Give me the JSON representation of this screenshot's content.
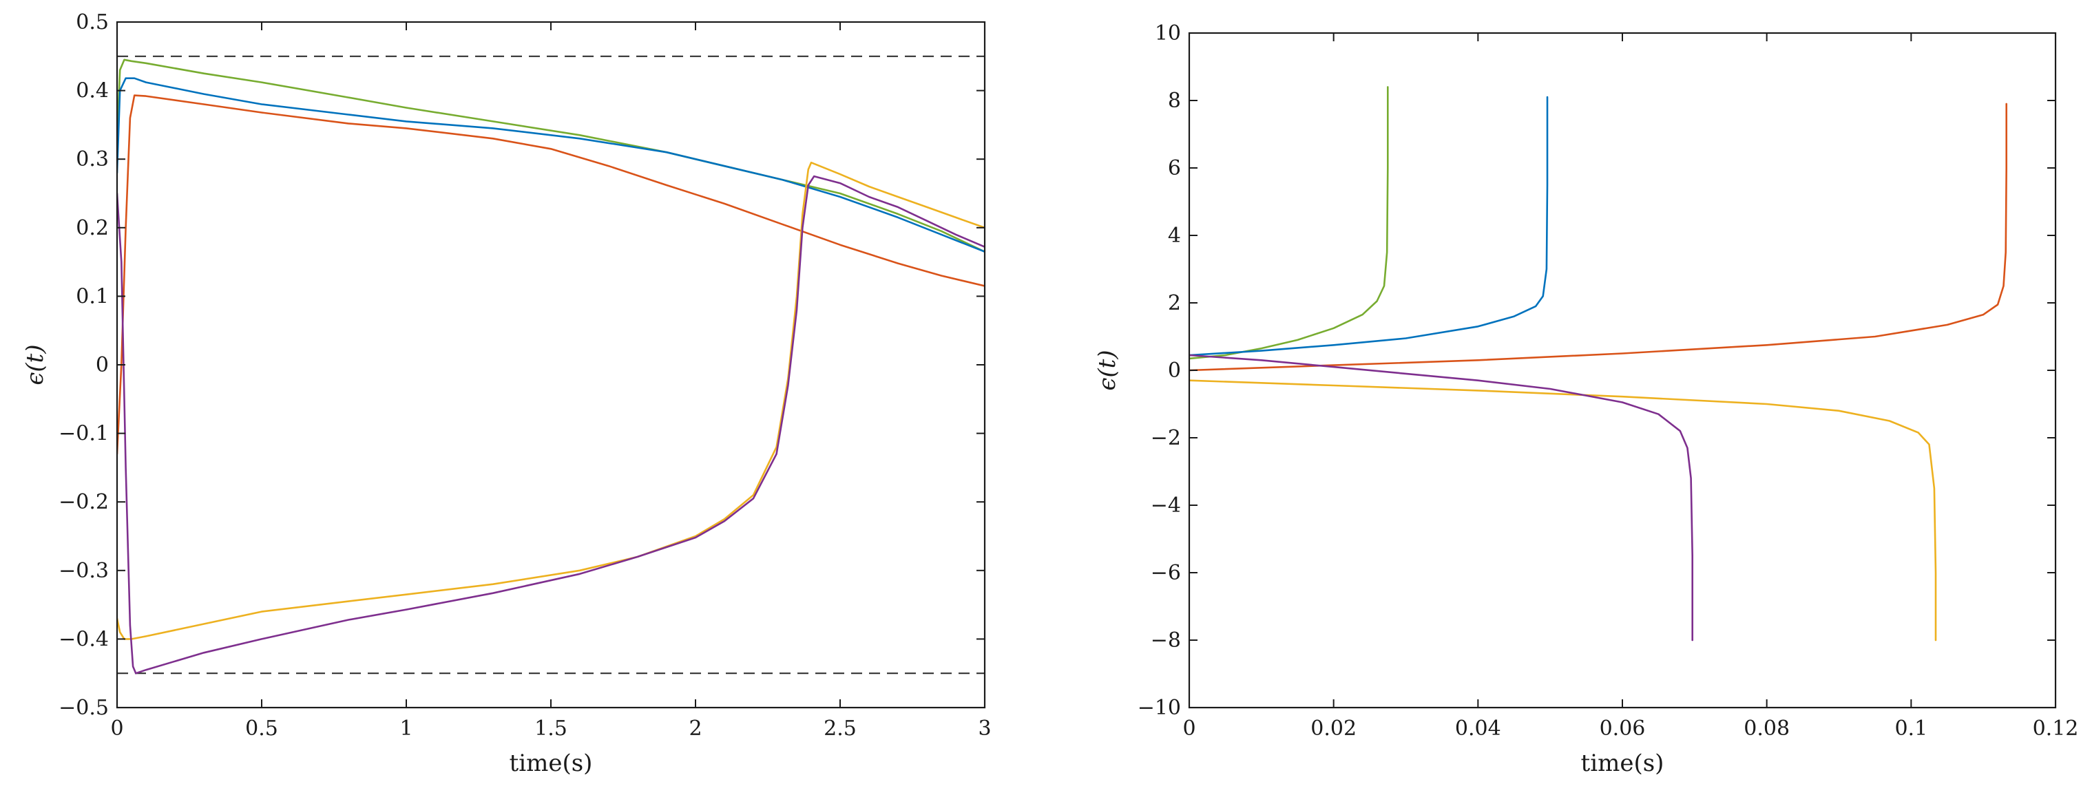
{
  "chart_data": [
    {
      "type": "line",
      "xlabel": "time(s)",
      "ylabel": "ϵ(t)",
      "xlim": [
        0,
        3
      ],
      "ylim": [
        -0.5,
        0.5
      ],
      "xticks": [
        0,
        0.5,
        1,
        1.5,
        2,
        2.5,
        3
      ],
      "xtick_labels": [
        "0",
        "0.5",
        "1",
        "1.5",
        "2",
        "2.5",
        "3"
      ],
      "yticks": [
        -0.5,
        -0.4,
        -0.3,
        -0.2,
        -0.1,
        0,
        0.1,
        0.2,
        0.3,
        0.4,
        0.5
      ],
      "ytick_labels": [
        "−0.5",
        "−0.4",
        "−0.3",
        "−0.2",
        "−0.1",
        "0",
        "0.1",
        "0.2",
        "0.3",
        "0.4",
        "0.5"
      ],
      "grid": false,
      "reference_lines": [
        {
          "y": 0.45,
          "style": "dashed",
          "color": "#333333"
        },
        {
          "y": -0.45,
          "style": "dashed",
          "color": "#333333"
        }
      ],
      "series": [
        {
          "color": "#77AC30",
          "x": [
            0,
            0.01,
            0.025,
            0.05,
            0.1,
            0.3,
            0.5,
            0.8,
            1.0,
            1.3,
            1.6,
            1.9,
            2.1,
            2.3,
            2.5,
            2.7,
            2.85,
            3.0
          ],
          "y": [
            0.33,
            0.43,
            0.445,
            0.443,
            0.44,
            0.425,
            0.412,
            0.39,
            0.375,
            0.355,
            0.335,
            0.31,
            0.29,
            0.27,
            0.25,
            0.22,
            0.195,
            0.165
          ]
        },
        {
          "color": "#0072BD",
          "x": [
            0,
            0.01,
            0.03,
            0.06,
            0.1,
            0.3,
            0.5,
            0.8,
            1.0,
            1.3,
            1.6,
            1.9,
            2.1,
            2.3,
            2.5,
            2.7,
            2.85,
            3.0
          ],
          "y": [
            0.28,
            0.4,
            0.418,
            0.418,
            0.412,
            0.395,
            0.38,
            0.365,
            0.355,
            0.345,
            0.33,
            0.31,
            0.29,
            0.27,
            0.245,
            0.215,
            0.19,
            0.165
          ]
        },
        {
          "color": "#D95319",
          "x": [
            0,
            0.015,
            0.03,
            0.045,
            0.06,
            0.1,
            0.3,
            0.5,
            0.8,
            1.0,
            1.3,
            1.5,
            1.7,
            1.9,
            2.1,
            2.3,
            2.5,
            2.7,
            2.85,
            3.0
          ],
          "y": [
            -0.13,
            0.0,
            0.2,
            0.36,
            0.393,
            0.392,
            0.38,
            0.368,
            0.352,
            0.345,
            0.33,
            0.315,
            0.29,
            0.262,
            0.235,
            0.205,
            0.175,
            0.148,
            0.13,
            0.115
          ]
        },
        {
          "color": "#EDB120",
          "x": [
            0,
            0.01,
            0.025,
            0.05,
            0.1,
            0.3,
            0.5,
            0.8,
            1.0,
            1.3,
            1.6,
            1.8,
            2.0,
            2.1,
            2.2,
            2.28,
            2.32,
            2.35,
            2.37,
            2.39,
            2.4,
            2.5,
            2.6,
            2.7,
            2.8,
            2.9,
            3.0
          ],
          "y": [
            -0.37,
            -0.39,
            -0.4,
            -0.4,
            -0.396,
            -0.378,
            -0.36,
            -0.345,
            -0.335,
            -0.32,
            -0.3,
            -0.28,
            -0.25,
            -0.225,
            -0.19,
            -0.12,
            -0.02,
            0.1,
            0.22,
            0.285,
            0.295,
            0.278,
            0.26,
            0.245,
            0.23,
            0.215,
            0.2
          ]
        },
        {
          "color": "#7E2F8E",
          "x": [
            0,
            0.015,
            0.03,
            0.045,
            0.055,
            0.065,
            0.1,
            0.3,
            0.5,
            0.8,
            1.0,
            1.3,
            1.6,
            1.8,
            2.0,
            2.1,
            2.2,
            2.28,
            2.32,
            2.35,
            2.37,
            2.39,
            2.41,
            2.5,
            2.6,
            2.7,
            2.8,
            2.9,
            3.0
          ],
          "y": [
            0.25,
            0.15,
            -0.15,
            -0.38,
            -0.44,
            -0.45,
            -0.445,
            -0.42,
            -0.4,
            -0.372,
            -0.357,
            -0.333,
            -0.305,
            -0.28,
            -0.252,
            -0.228,
            -0.195,
            -0.13,
            -0.03,
            0.08,
            0.2,
            0.262,
            0.275,
            0.265,
            0.245,
            0.23,
            0.21,
            0.19,
            0.172
          ]
        }
      ]
    },
    {
      "type": "line",
      "xlabel": "time(s)",
      "ylabel": "ϵ(t)",
      "xlim": [
        0,
        0.12
      ],
      "ylim": [
        -10,
        10
      ],
      "xticks": [
        0,
        0.02,
        0.04,
        0.06,
        0.08,
        0.1,
        0.12
      ],
      "xtick_labels": [
        "0",
        "0.02",
        "0.04",
        "0.06",
        "0.08",
        "0.1",
        "0.12"
      ],
      "yticks": [
        -10,
        -8,
        -6,
        -4,
        -2,
        0,
        2,
        4,
        6,
        8,
        10
      ],
      "ytick_labels": [
        "−10",
        "−8",
        "−6",
        "−4",
        "−2",
        "0",
        "2",
        "4",
        "6",
        "8",
        "10"
      ],
      "grid": false,
      "series": [
        {
          "color": "#77AC30",
          "x": [
            0,
            0.005,
            0.01,
            0.015,
            0.02,
            0.024,
            0.026,
            0.027,
            0.0274,
            0.0275,
            0.0275
          ],
          "y": [
            0.35,
            0.45,
            0.65,
            0.9,
            1.25,
            1.65,
            2.05,
            2.5,
            3.5,
            6.0,
            8.4
          ]
        },
        {
          "color": "#0072BD",
          "x": [
            0,
            0.01,
            0.02,
            0.03,
            0.04,
            0.045,
            0.048,
            0.049,
            0.0495,
            0.0496,
            0.0496
          ],
          "y": [
            0.45,
            0.58,
            0.75,
            0.95,
            1.3,
            1.6,
            1.9,
            2.2,
            3.0,
            5.5,
            8.1
          ]
        },
        {
          "color": "#D95319",
          "x": [
            0,
            0.02,
            0.04,
            0.06,
            0.08,
            0.095,
            0.105,
            0.11,
            0.112,
            0.1128,
            0.1131,
            0.1132,
            0.1132
          ],
          "y": [
            0.0,
            0.15,
            0.3,
            0.5,
            0.75,
            1.0,
            1.35,
            1.65,
            1.95,
            2.5,
            3.5,
            6.0,
            7.9
          ]
        },
        {
          "color": "#EDB120",
          "x": [
            0,
            0.02,
            0.04,
            0.06,
            0.08,
            0.09,
            0.097,
            0.101,
            0.1025,
            0.1032,
            0.1034,
            0.1034
          ],
          "y": [
            -0.3,
            -0.45,
            -0.6,
            -0.78,
            -1.0,
            -1.2,
            -1.5,
            -1.85,
            -2.2,
            -3.5,
            -6.0,
            -8.0
          ]
        },
        {
          "color": "#7E2F8E",
          "x": [
            0,
            0.01,
            0.02,
            0.03,
            0.04,
            0.05,
            0.06,
            0.065,
            0.068,
            0.069,
            0.0695,
            0.0697,
            0.0697
          ],
          "y": [
            0.45,
            0.3,
            0.1,
            -0.1,
            -0.3,
            -0.55,
            -0.95,
            -1.3,
            -1.8,
            -2.3,
            -3.2,
            -5.5,
            -8.0
          ]
        }
      ]
    }
  ]
}
